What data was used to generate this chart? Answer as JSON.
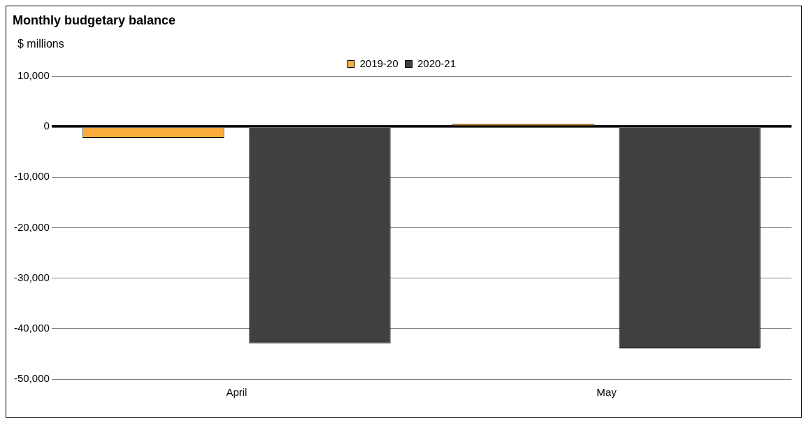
{
  "chart_data": {
    "type": "bar",
    "title": "Monthly budgetary balance",
    "ylabel": "$ millions",
    "categories": [
      "April",
      "May"
    ],
    "series": [
      {
        "name": "2019-20",
        "color": "#f9ac3d",
        "values": [
          -2200,
          600
        ]
      },
      {
        "name": "2020-21",
        "color": "#404040",
        "values": [
          -42900,
          -43900
        ]
      }
    ],
    "ylim": [
      -50000,
      10000
    ],
    "yticks": [
      {
        "value": -50000,
        "label": "-50,000"
      },
      {
        "value": -40000,
        "label": "-40,000"
      },
      {
        "value": -30000,
        "label": "-30,000"
      },
      {
        "value": -20000,
        "label": "-20,000"
      },
      {
        "value": -10000,
        "label": "-10,000"
      },
      0,
      {
        "value": 10000,
        "label": "10,000"
      }
    ],
    "grid": "y",
    "legend": "top"
  }
}
